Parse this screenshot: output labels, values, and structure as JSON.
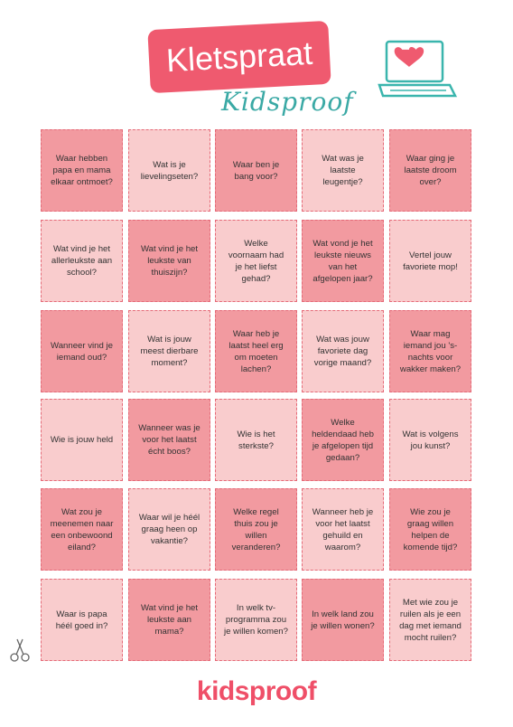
{
  "header": {
    "title": "Kletspraat",
    "subtitle": "Kidsproof"
  },
  "cards": {
    "rows": [
      [
        "Waar hebben papa en mama elkaar ontmoet?",
        "Wat is je lievelingseten?",
        "Waar ben je bang voor?",
        "Wat was je laatste leugentje?",
        "Waar ging je laatste droom over?"
      ],
      [
        "Wat vind je het allerleukste aan school?",
        "Wat vind je het leukste van thuiszijn?",
        "Welke voornaam had je het liefst gehad?",
        "Wat vond je het leukste nieuws van het afgelopen jaar?",
        "Vertel jouw favoriete mop!"
      ],
      [
        "Wanneer vind je iemand oud?",
        "Wat is jouw meest dierbare moment?",
        "Waar heb je laatst heel erg om moeten lachen?",
        "Wat was jouw favoriete dag vorige maand?",
        "Waar mag iemand jou 's-nachts voor wakker maken?"
      ],
      [
        "Wie is jouw held",
        "Wanneer was je voor het laatst écht boos?",
        "Wie is het sterkste?",
        "Welke heldendaad heb je afgelopen tijd gedaan?",
        "Wat is volgens jou kunst?"
      ],
      [
        "Wat zou je meenemen naar een onbewoond eiland?",
        "Waar wil je héél graag heen op vakantie?",
        "Welke regel thuis zou je willen veranderen?",
        "Wanneer heb je voor het laatst gehuild en waarom?",
        "Wie zou je graag willen helpen de komende tijd?"
      ],
      [
        "Waar is papa héél goed in?",
        "Wat vind je het leukste aan mama?",
        "In welk tv-programma zou je willen komen?",
        "In welk land zou je willen wonen?",
        "Met wie zou je ruilen als je een dag met iemand mocht ruilen?"
      ]
    ]
  },
  "footer": {
    "logo": "kidsproof"
  }
}
